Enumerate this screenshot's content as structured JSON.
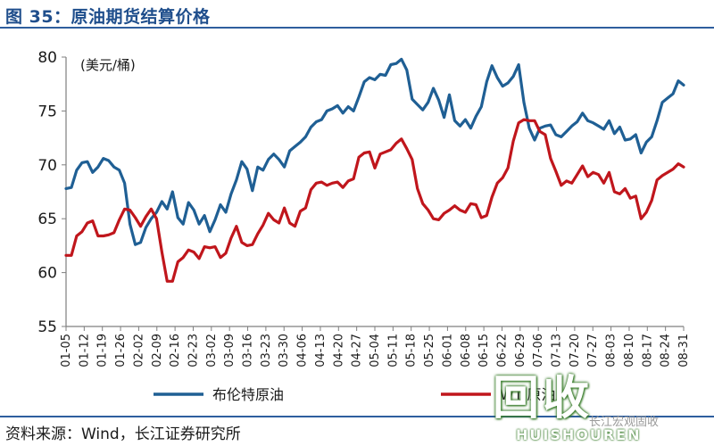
{
  "figure": {
    "title": "图 35：原油期货结算价格",
    "source": "资料来源：Wind，长江证券研究所"
  },
  "watermark": {
    "big_text": "回收",
    "small_text": "长江宏观固收",
    "brand_text": "HUISHOUREN"
  },
  "chart_data": {
    "type": "line",
    "unit_label": "(美元/桶)",
    "ylim": [
      55,
      80
    ],
    "y_ticks": [
      55,
      60,
      65,
      70,
      75,
      80
    ],
    "x_tick_labels": [
      "01-05",
      "01-12",
      "01-19",
      "01-26",
      "02-02",
      "02-09",
      "02-16",
      "02-23",
      "03-02",
      "03-09",
      "03-16",
      "03-23",
      "03-30",
      "04-06",
      "04-13",
      "04-20",
      "04-27",
      "05-04",
      "05-11",
      "05-18",
      "05-25",
      "06-01",
      "06-08",
      "06-15",
      "06-22",
      "06-29",
      "07-06",
      "07-13",
      "07-20",
      "07-27",
      "08-03",
      "08-10",
      "08-17",
      "08-24",
      "08-31"
    ],
    "grid": false,
    "legend_position": "bottom",
    "series": [
      {
        "name": "布伦特原油",
        "color": "#1f5f94",
        "values": [
          67.8,
          67.9,
          69.5,
          70.2,
          70.3,
          69.3,
          69.8,
          70.6,
          70.4,
          69.8,
          69.5,
          68.3,
          64.5,
          62.6,
          62.8,
          64.2,
          65.0,
          65.6,
          66.6,
          65.9,
          67.5,
          65.1,
          64.5,
          66.5,
          65.8,
          64.5,
          65.3,
          63.8,
          64.9,
          66.3,
          65.6,
          67.3,
          68.6,
          70.3,
          69.6,
          67.6,
          69.8,
          69.5,
          70.5,
          71.0,
          70.5,
          69.8,
          71.3,
          71.7,
          72.1,
          72.6,
          73.5,
          74.0,
          74.2,
          75.0,
          75.2,
          75.5,
          74.8,
          75.4,
          75.0,
          76.3,
          77.7,
          78.1,
          77.9,
          78.4,
          78.3,
          79.3,
          79.4,
          79.8,
          78.8,
          76.1,
          75.6,
          75.1,
          75.8,
          77.1,
          76.0,
          74.4,
          76.5,
          74.1,
          73.6,
          74.2,
          73.4,
          74.5,
          75.4,
          77.7,
          79.2,
          78.1,
          77.3,
          77.6,
          78.2,
          79.3,
          75.8,
          73.4,
          72.3,
          73.4,
          73.6,
          73.7,
          72.8,
          72.6,
          73.1,
          73.6,
          74.0,
          74.8,
          74.1,
          73.9,
          73.6,
          73.3,
          74.1,
          72.9,
          73.5,
          72.3,
          72.4,
          72.8,
          71.1,
          72.1,
          72.6,
          74.1,
          75.8,
          76.2,
          76.6,
          77.8,
          77.4
        ]
      },
      {
        "name": "WTI原油",
        "color": "#c0161c",
        "values": [
          61.6,
          61.6,
          63.4,
          63.8,
          64.6,
          64.8,
          63.4,
          63.4,
          63.5,
          63.7,
          64.9,
          65.9,
          65.8,
          65.1,
          64.3,
          65.2,
          65.9,
          65.0,
          61.9,
          59.2,
          59.2,
          61.0,
          61.4,
          62.1,
          61.9,
          61.3,
          62.4,
          62.3,
          62.4,
          61.4,
          61.8,
          63.2,
          64.3,
          62.8,
          62.5,
          62.6,
          63.6,
          64.4,
          65.5,
          64.9,
          64.6,
          66.0,
          64.6,
          64.3,
          65.7,
          66.0,
          67.7,
          68.3,
          68.4,
          68.1,
          68.3,
          68.4,
          67.9,
          68.5,
          68.7,
          70.7,
          71.1,
          71.2,
          69.7,
          71.0,
          71.2,
          71.4,
          72.0,
          72.4,
          71.5,
          70.5,
          67.8,
          66.4,
          65.8,
          65.0,
          64.9,
          65.5,
          65.8,
          66.2,
          65.8,
          65.6,
          66.4,
          66.3,
          65.1,
          65.3,
          67.0,
          68.3,
          68.8,
          69.7,
          72.2,
          73.9,
          74.2,
          74.1,
          74.1,
          73.1,
          72.8,
          70.6,
          69.4,
          68.1,
          68.5,
          68.3,
          69.1,
          69.9,
          68.9,
          69.3,
          69.1,
          68.3,
          69.3,
          67.5,
          67.3,
          67.8,
          66.9,
          67.1,
          65.0,
          65.6,
          66.7,
          68.6,
          69.0,
          69.3,
          69.6,
          70.1,
          69.8
        ]
      }
    ]
  }
}
